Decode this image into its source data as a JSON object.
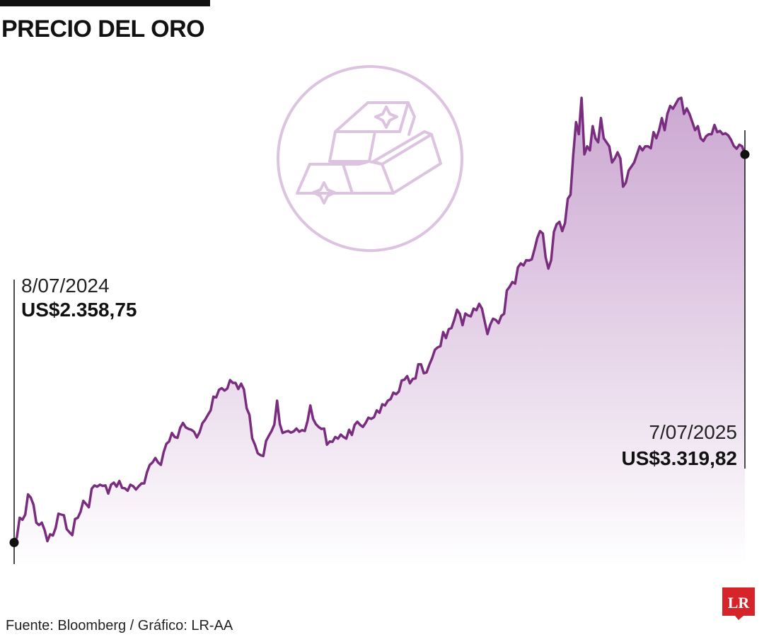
{
  "header": {
    "title": "PRECIO DEL ORO"
  },
  "annotations": {
    "start": {
      "date": "8/07/2024",
      "value": "US$2.358,75"
    },
    "end": {
      "date": "7/07/2025",
      "value": "US$3.319,82"
    }
  },
  "footer": {
    "source": "Fuente: Bloomberg / Gráfico: LR-AA"
  },
  "logo": {
    "text": "LR",
    "color": "#d6242b"
  },
  "colors": {
    "line": "#7a2d7e",
    "fill_top": "#c9a3cf",
    "fill_bottom": "#ffffff",
    "icon": "#dcc3e0",
    "dot": "#111111"
  },
  "icon": {
    "name": "gold-bars-icon"
  },
  "chart_data": {
    "type": "area",
    "title": "PRECIO DEL ORO",
    "xlabel": "",
    "ylabel": "",
    "grid": false,
    "ylim": [
      2300,
      3520
    ],
    "x_range": [
      "8/07/2024",
      "7/07/2025"
    ],
    "series": [
      {
        "name": "",
        "values": [
          2358.75,
          2372,
          2420,
          2415,
          2428,
          2478,
          2470,
          2452,
          2408,
          2402,
          2408,
          2390,
          2362,
          2379,
          2376,
          2395,
          2430,
          2428,
          2426,
          2392,
          2384,
          2377,
          2417,
          2420,
          2435,
          2462,
          2454,
          2446,
          2492,
          2500,
          2497,
          2502,
          2499,
          2500,
          2480,
          2502,
          2507,
          2497,
          2511,
          2494,
          2493,
          2487,
          2502,
          2498,
          2490,
          2498,
          2505,
          2505,
          2533,
          2551,
          2557,
          2568,
          2557,
          2551,
          2582,
          2603,
          2609,
          2630,
          2620,
          2618,
          2643,
          2655,
          2644,
          2640,
          2638,
          2633,
          2619,
          2632,
          2654,
          2663,
          2675,
          2686,
          2720,
          2718,
          2737,
          2741,
          2735,
          2740,
          2761,
          2754,
          2754,
          2739,
          2752,
          2738,
          2691,
          2675,
          2617,
          2601,
          2580,
          2575,
          2573,
          2610,
          2623,
          2635,
          2651,
          2710,
          2652,
          2630,
          2633,
          2635,
          2631,
          2634,
          2641,
          2633,
          2637,
          2635,
          2660,
          2698,
          2665,
          2652,
          2645,
          2640,
          2641,
          2601,
          2609,
          2608,
          2620,
          2616,
          2626,
          2620,
          2616,
          2638,
          2625,
          2650,
          2658,
          2650,
          2645,
          2655,
          2668,
          2665,
          2669,
          2686,
          2680,
          2701,
          2698,
          2710,
          2714,
          2730,
          2726,
          2733,
          2760,
          2762,
          2771,
          2753,
          2764,
          2765,
          2800,
          2800,
          2778,
          2780,
          2799,
          2815,
          2836,
          2842,
          2845,
          2880,
          2865,
          2887,
          2890,
          2910,
          2935,
          2925,
          2897,
          2926,
          2921,
          2919,
          2938,
          2934,
          2950,
          2938,
          2906,
          2875,
          2898,
          2913,
          2910,
          2902,
          2920,
          2925,
          2983,
          2992,
          3004,
          3000,
          3040,
          3050,
          3045,
          3058,
          3057,
          3060,
          3085,
          3113,
          3130,
          3124,
          3065,
          3037,
          3058,
          3128,
          3147,
          3153,
          3130,
          3150,
          3210,
          3220,
          3320,
          3400,
          3370,
          3460,
          3320,
          3340,
          3330,
          3390,
          3360,
          3350,
          3410,
          3360,
          3350,
          3340,
          3300,
          3310,
          3325,
          3310,
          3240,
          3250,
          3280,
          3290,
          3300,
          3320,
          3340,
          3330,
          3340,
          3340,
          3335,
          3375,
          3360,
          3380,
          3410,
          3380,
          3420,
          3440,
          3433,
          3445,
          3457,
          3460,
          3420,
          3434,
          3420,
          3400,
          3380,
          3390,
          3360,
          3353,
          3365,
          3370,
          3370,
          3393,
          3375,
          3378,
          3370,
          3372,
          3367,
          3356,
          3341,
          3334,
          3344,
          3340,
          3319.82
        ]
      }
    ]
  }
}
